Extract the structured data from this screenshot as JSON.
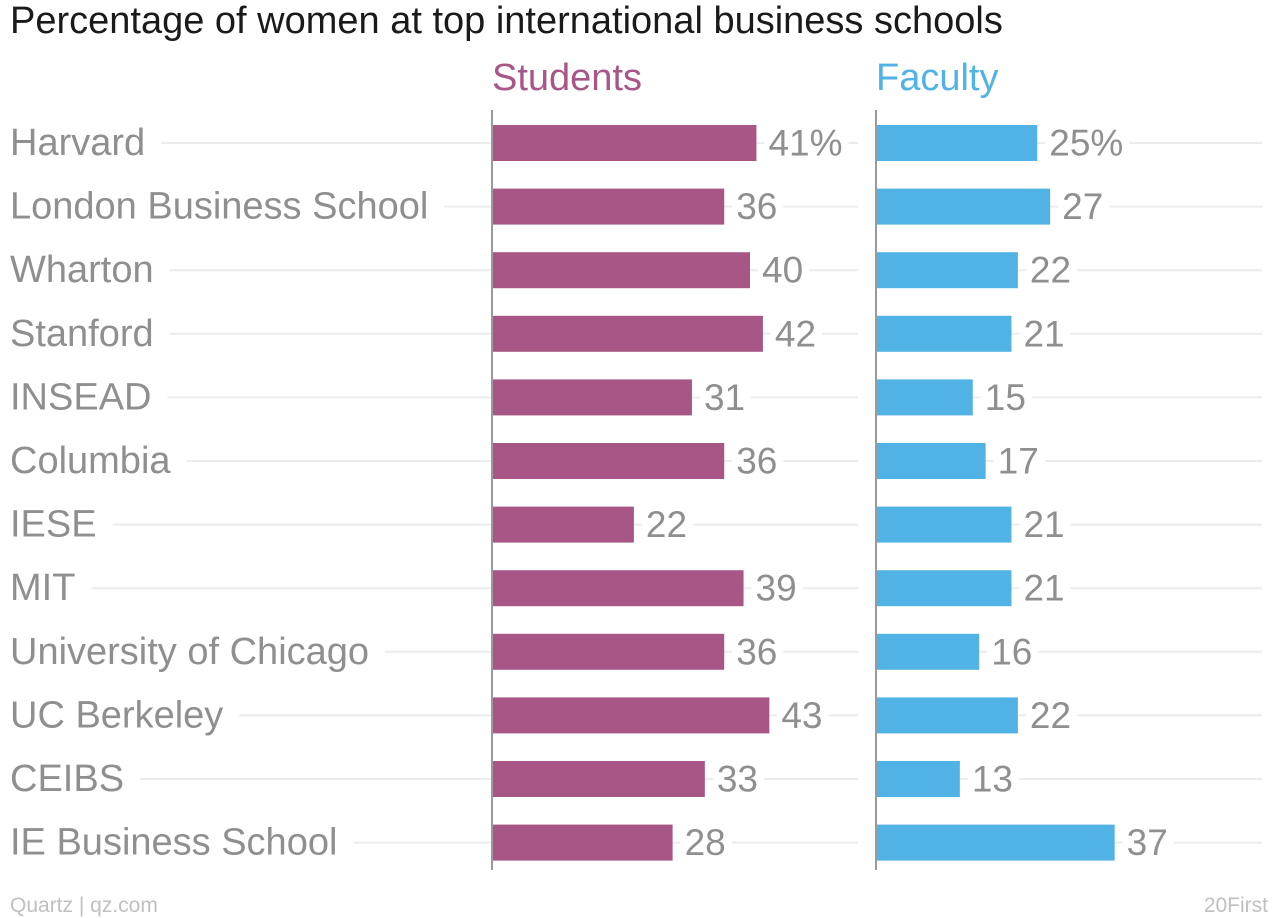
{
  "colors": {
    "students": "#a85686",
    "faculty": "#51b2e5",
    "label_text": "#8f8f8f",
    "title_text": "#1a1a1a",
    "gridline": "#ececec",
    "axis": "#9a9a9a",
    "footer_text": "#c0c0c0"
  },
  "title": "Percentage of women at top international business schools",
  "footer": {
    "source": "Quartz | qz.com",
    "credit": "20First"
  },
  "chart_data": {
    "type": "bar",
    "orientation": "horizontal",
    "title": "Percentage of women at top international business schools",
    "categories": [
      "Harvard",
      "London Business School",
      "Wharton",
      "Stanford",
      "INSEAD",
      "Columbia",
      "IESE",
      "MIT",
      "University of Chicago",
      "UC Berkeley",
      "CEIBS",
      "IE Business School"
    ],
    "series": [
      {
        "name": "Students",
        "values": [
          41,
          36,
          40,
          42,
          31,
          36,
          22,
          39,
          36,
          43,
          33,
          28
        ]
      },
      {
        "name": "Faculty",
        "values": [
          25,
          27,
          22,
          21,
          15,
          17,
          21,
          21,
          16,
          22,
          13,
          37
        ]
      }
    ],
    "value_suffix_first_row": "%",
    "xlim": [
      0,
      50
    ],
    "grid": true,
    "legend": "column headers above each panel"
  }
}
